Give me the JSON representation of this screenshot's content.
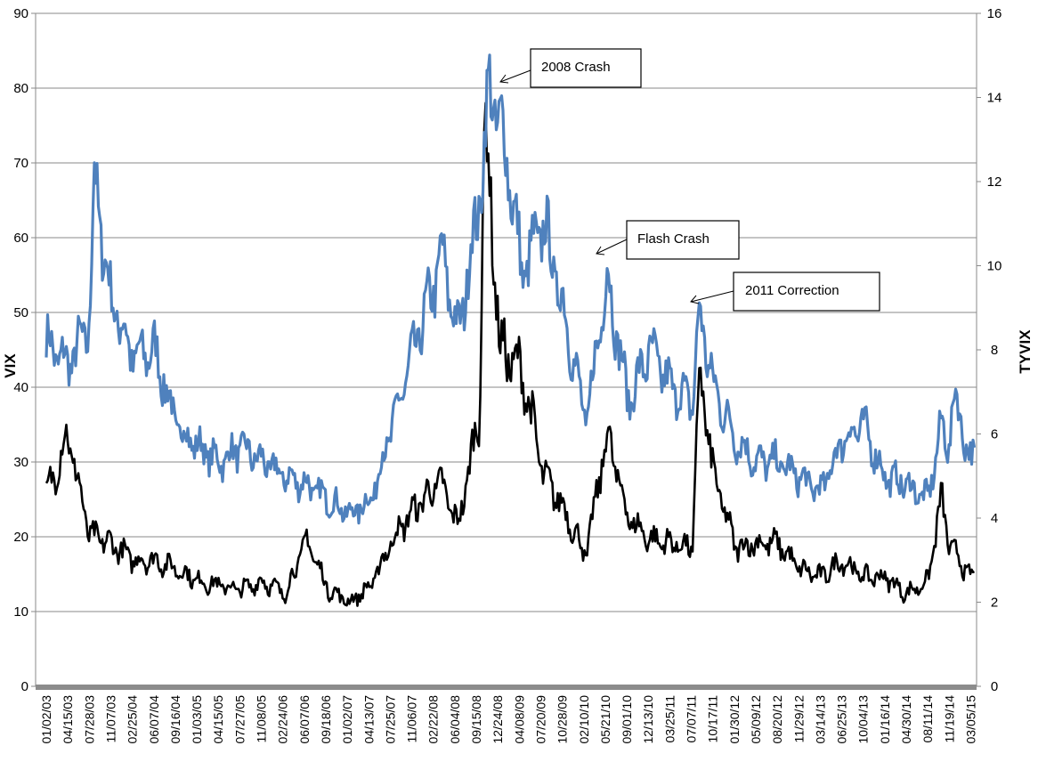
{
  "chart_data": {
    "type": "line",
    "left_axis": {
      "title": "VIX",
      "range": [
        0,
        90
      ],
      "ticks": [
        "0",
        "10",
        "20",
        "30",
        "40",
        "50",
        "60",
        "70",
        "80",
        "90"
      ]
    },
    "right_axis": {
      "title": "TYVIX",
      "range": [
        0,
        16
      ],
      "ticks": [
        "0",
        "2",
        "4",
        "6",
        "8",
        "10",
        "12",
        "14",
        "16"
      ]
    },
    "grid": true,
    "x_tick_labels": [
      "01/02/03",
      "04/15/03",
      "07/28/03",
      "11/07/03",
      "02/25/04",
      "06/07/04",
      "09/16/04",
      "01/03/05",
      "04/15/05",
      "07/27/05",
      "11/08/05",
      "02/24/06",
      "06/07/06",
      "09/18/06",
      "01/02/07",
      "04/13/07",
      "07/25/07",
      "11/06/07",
      "02/22/08",
      "06/04/08",
      "09/15/08",
      "12/24/08",
      "04/08/09",
      "07/20/09",
      "10/28/09",
      "02/10/10",
      "05/21/10",
      "09/01/10",
      "12/13/10",
      "03/25/11",
      "07/07/11",
      "10/17/11",
      "01/30/12",
      "05/09/12",
      "08/20/12",
      "11/29/12",
      "03/14/13",
      "06/25/13",
      "10/04/13",
      "01/16/14",
      "04/30/14",
      "08/11/14",
      "11/19/14",
      "03/05/15"
    ],
    "series": [
      {
        "axis": "left",
        "color": "#4f81bd",
        "x": [
          "01/02/03",
          "04/15/03",
          "07/28/03",
          "08/20/03",
          "11/07/03",
          "02/25/04",
          "06/07/04",
          "09/16/04",
          "01/03/05",
          "04/15/05",
          "07/27/05",
          "11/08/05",
          "02/24/06",
          "06/07/06",
          "09/18/06",
          "01/02/07",
          "04/13/07",
          "07/25/07",
          "11/06/07",
          "02/22/08",
          "03/17/08",
          "06/04/08",
          "09/15/08",
          "11/01/08",
          "12/24/08",
          "02/10/09",
          "04/08/09",
          "07/20/09",
          "10/28/09",
          "02/10/10",
          "05/21/10",
          "09/01/10",
          "12/13/10",
          "03/25/11",
          "07/07/11",
          "08/08/11",
          "10/17/11",
          "01/30/12",
          "05/09/12",
          "08/20/12",
          "11/29/12",
          "03/14/13",
          "06/25/13",
          "10/04/13",
          "01/16/14",
          "04/30/14",
          "08/11/14",
          "10/15/14",
          "11/19/14",
          "12/16/14",
          "03/05/15",
          "05/15/15"
        ],
        "values": [
          46,
          43,
          48,
          68,
          52,
          44,
          45,
          35,
          32,
          30,
          32,
          30,
          28,
          27,
          25,
          23,
          25,
          35,
          45,
          55,
          58,
          47,
          65,
          80,
          75,
          68,
          55,
          62,
          50,
          35,
          55,
          38,
          45,
          40,
          38,
          50,
          40,
          33,
          30,
          30,
          28,
          26,
          33,
          35,
          28,
          27,
          25,
          35,
          32,
          39,
          30,
          33
        ]
      },
      {
        "axis": "right",
        "color": "#000000",
        "x": [
          "01/02/03",
          "04/15/03",
          "07/28/03",
          "11/07/03",
          "02/25/04",
          "06/07/04",
          "09/16/04",
          "01/03/05",
          "04/15/05",
          "07/27/05",
          "11/08/05",
          "02/24/06",
          "06/07/06",
          "09/18/06",
          "01/02/07",
          "04/13/07",
          "07/25/07",
          "11/06/07",
          "02/22/08",
          "03/17/08",
          "06/04/08",
          "09/15/08",
          "10/10/08",
          "12/24/08",
          "04/08/09",
          "07/20/09",
          "10/28/09",
          "02/10/10",
          "05/21/10",
          "09/01/10",
          "12/13/10",
          "03/25/11",
          "07/07/11",
          "08/08/11",
          "10/17/11",
          "01/30/12",
          "05/09/12",
          "08/20/12",
          "11/29/12",
          "03/14/13",
          "06/25/13",
          "10/04/13",
          "01/16/14",
          "04/30/14",
          "08/11/14",
          "10/15/14",
          "11/19/14",
          "03/05/15",
          "05/15/15"
        ],
        "values": [
          4.5,
          6.0,
          3.6,
          3.4,
          3.0,
          3.0,
          2.8,
          2.5,
          2.4,
          2.3,
          2.5,
          2.2,
          3.5,
          2.3,
          2.0,
          2.4,
          3.5,
          4.2,
          4.8,
          4.8,
          3.8,
          6.5,
          13.5,
          8.0,
          7.5,
          5.0,
          4.2,
          3.1,
          6.0,
          4.0,
          3.5,
          3.4,
          3.3,
          7.5,
          5.0,
          3.3,
          3.4,
          3.4,
          2.8,
          2.6,
          3.0,
          2.6,
          2.6,
          2.2,
          2.5,
          4.5,
          3.4,
          2.6,
          2.5
        ]
      }
    ],
    "annotations": [
      {
        "text": "2008 Crash"
      },
      {
        "text": "Flash Crash"
      },
      {
        "text": "2011 Correction"
      }
    ]
  }
}
